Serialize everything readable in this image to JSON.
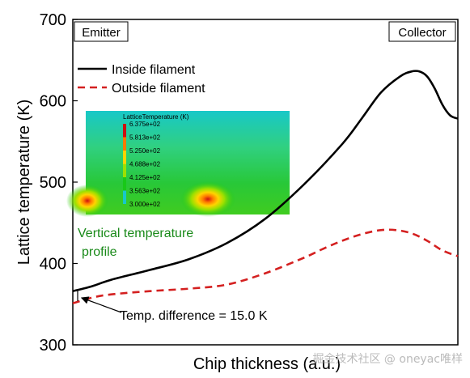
{
  "chart_data": {
    "type": "line",
    "title": "",
    "xlabel": "Chip thickness (a.u.)",
    "ylabel": "Lattice temperature (K)",
    "ylim": [
      300,
      700
    ],
    "yticks": [
      "300",
      "400",
      "500",
      "600",
      "700"
    ],
    "xlim": [
      0,
      100
    ],
    "legend_position": "top-left",
    "corner_labels": {
      "left": "Emitter",
      "right": "Collector"
    },
    "series": [
      {
        "name": "Inside filament",
        "color": "#000000",
        "style": "solid",
        "x": [
          0,
          5,
          10,
          20,
          30,
          40,
          50,
          60,
          70,
          75,
          80,
          85,
          88,
          90,
          92,
          94,
          96,
          98,
          100
        ],
        "y": [
          366,
          372,
          380,
          392,
          405,
          425,
          455,
          497,
          547,
          578,
          610,
          630,
          636,
          636,
          630,
          615,
          595,
          582,
          578
        ]
      },
      {
        "name": "Outside filament",
        "color": "#d42020",
        "style": "dashed",
        "x": [
          0,
          5,
          10,
          20,
          30,
          40,
          50,
          60,
          65,
          70,
          75,
          80,
          84,
          88,
          92,
          96,
          100
        ],
        "y": [
          351,
          358,
          362,
          366,
          369,
          374,
          388,
          407,
          418,
          428,
          436,
          441,
          441,
          437,
          428,
          416,
          409
        ]
      }
    ],
    "annotations": [
      {
        "text": "Temp. difference = 15.0 K",
        "x": 0,
        "y_from": 351,
        "y_to": 366
      },
      {
        "text_lines": [
          "Vertical temperature",
          "profile"
        ],
        "color": "#1a8a1a"
      }
    ],
    "inset": {
      "type": "heatmap",
      "title": "LatticeTemperature (K)",
      "colorbar_labels": [
        "6.375e+02",
        "5.813e+02",
        "5.250e+02",
        "4.688e+02",
        "4.125e+02",
        "3.563e+02",
        "3.000e+02"
      ],
      "colorbar_colors": [
        "#cc1111",
        "#ff7a00",
        "#ffd400",
        "#9be000",
        "#18c818",
        "#18c8c8",
        "#2233cc"
      ],
      "hotspots": [
        "left-edge",
        "center"
      ]
    }
  },
  "watermark": "掘金技术社区 @ oneyac唯样"
}
